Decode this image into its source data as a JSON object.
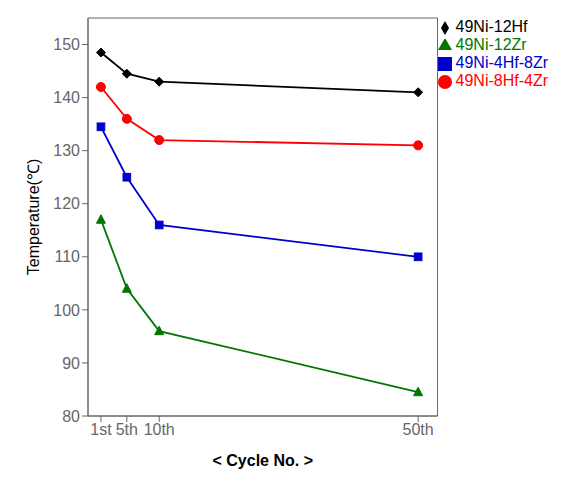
{
  "chart_data": {
    "type": "line",
    "xlabel": "<  Cycle No.  >",
    "ylabel": "Temperature(℃)",
    "x": [
      1,
      5,
      10,
      50
    ],
    "xlim": [
      -1,
      53
    ],
    "xticks": [
      {
        "value": 1,
        "label": "1st"
      },
      {
        "value": 5,
        "label": "5th"
      },
      {
        "value": 10,
        "label": "10th"
      },
      {
        "value": 50,
        "label": "50th"
      }
    ],
    "ylim": [
      80,
      155
    ],
    "yticks": [
      80,
      90,
      100,
      110,
      120,
      130,
      140,
      150
    ],
    "grid": false,
    "legend": "upper right",
    "series": [
      {
        "name": "49Ni-12Hf",
        "color": "#000000",
        "marker": "diamond",
        "values": [
          148.5,
          144.5,
          143.0,
          141.0
        ]
      },
      {
        "name": "49Ni-8Hf-4Zr",
        "color": "#ff0000",
        "marker": "circle",
        "values": [
          142.0,
          136.0,
          132.0,
          131.0
        ]
      },
      {
        "name": "49Ni-4Hf-8Zr",
        "color": "#0000cc",
        "marker": "square",
        "values": [
          134.5,
          125.0,
          116.0,
          110.0
        ]
      },
      {
        "name": "49Ni-12Zr",
        "color": "#007700",
        "marker": "triangle",
        "values": [
          117.0,
          104.0,
          96.0,
          84.5
        ]
      }
    ]
  }
}
